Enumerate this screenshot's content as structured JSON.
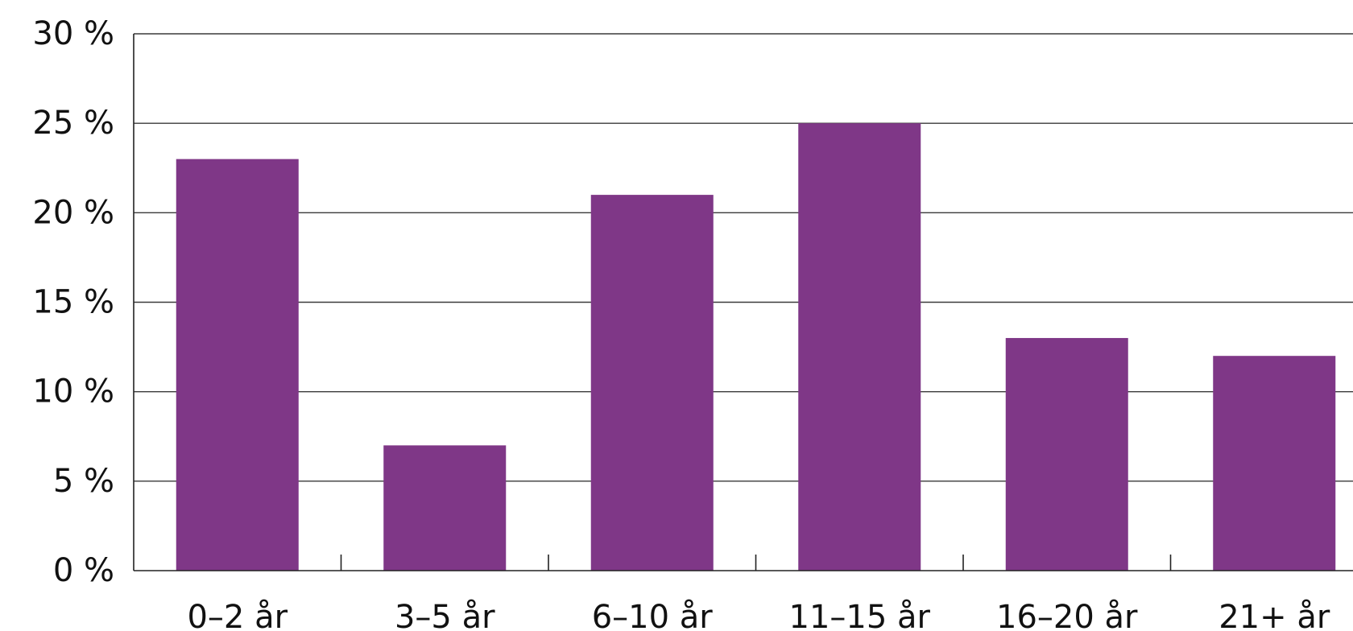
{
  "chart_data": {
    "type": "bar",
    "categories": [
      "0–2 år",
      "3–5 år",
      "6–10 år",
      "11–15 år",
      "16–20 år",
      "21+ år"
    ],
    "values": [
      23,
      7,
      21,
      25,
      13,
      12
    ],
    "unit": "%",
    "ylim": [
      0,
      30
    ],
    "yticks": [
      0,
      5,
      10,
      15,
      20,
      25,
      30
    ],
    "ytick_labels": [
      "0 %",
      "5 %",
      "10 %",
      "15 %",
      "20 %",
      "25 %",
      "30 %"
    ],
    "title": "",
    "xlabel": "",
    "ylabel": "",
    "grid": true,
    "bar_color": "#7f3787"
  }
}
